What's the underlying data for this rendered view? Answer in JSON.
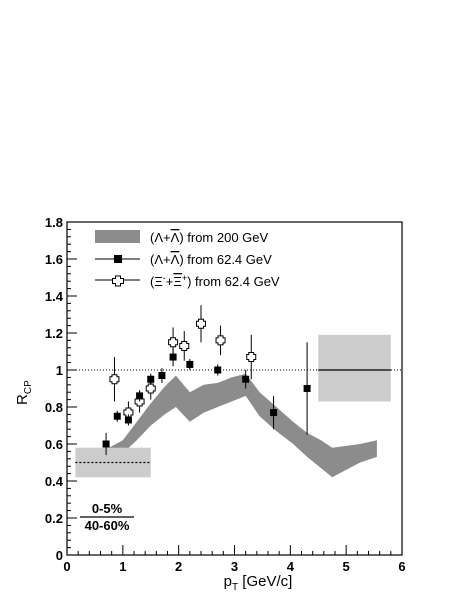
{
  "chart_data": {
    "type": "scatter",
    "xlabel": "p_T [GeV/c]",
    "xlabel_main": "p",
    "xlabel_sub": "T",
    "xlabel_unit": " [GeV/c]",
    "ylabel": "R_CP",
    "ylabel_main": "R",
    "ylabel_sub": "CP",
    "xlim": [
      0,
      6
    ],
    "ylim": [
      0,
      1.8
    ],
    "x_ticks": [
      0,
      1,
      2,
      3,
      4,
      5,
      6
    ],
    "x_tick_labels": [
      "0",
      "1",
      "2",
      "3",
      "4",
      "5",
      "6"
    ],
    "y_ticks": [
      0,
      0.2,
      0.4,
      0.6,
      0.8,
      1,
      1.2,
      1.4,
      1.6,
      1.8
    ],
    "y_tick_labels": [
      "0",
      "0.2",
      "0.4",
      "0.6",
      "0.8",
      "1",
      "1.2",
      "1.4",
      "1.6",
      "1.8"
    ],
    "grid": false,
    "legend_position": "top-right",
    "reference_line_y": 1.0,
    "legend": [
      {
        "key": "band",
        "label_parts": [
          "(",
          "Λ",
          "+",
          "Λ",
          ") from 200 GeV"
        ],
        "marker": "band"
      },
      {
        "key": "lambda62",
        "label_parts": [
          "(",
          "Λ",
          "+",
          "Λ",
          ") from 62.4 GeV"
        ],
        "marker": "filled-square"
      },
      {
        "key": "xi62",
        "label_parts": [
          "(",
          "Ξ",
          "+",
          "Ξ",
          ") from 62.4 GeV"
        ],
        "sup_minus": "-",
        "sup_plus": "+",
        "marker": "open-cross"
      }
    ],
    "series": [
      {
        "name": "(Λ+Λ̄) from 200 GeV",
        "type": "band",
        "color": "#8c8c8c",
        "x": [
          0.55,
          0.75,
          1.0,
          1.25,
          1.5,
          1.75,
          1.95,
          2.2,
          2.45,
          2.7,
          2.95,
          3.2,
          3.45,
          3.75,
          4.05,
          4.3,
          4.55,
          4.75,
          5.25,
          5.55
        ],
        "upper": [
          0.57,
          0.58,
          0.62,
          0.72,
          0.82,
          0.91,
          0.97,
          0.88,
          0.92,
          0.93,
          0.96,
          0.98,
          0.88,
          0.8,
          0.72,
          0.66,
          0.62,
          0.58,
          0.6,
          0.62
        ],
        "lower": [
          0.43,
          0.5,
          0.55,
          0.62,
          0.7,
          0.76,
          0.8,
          0.72,
          0.77,
          0.8,
          0.83,
          0.86,
          0.75,
          0.67,
          0.6,
          0.53,
          0.47,
          0.42,
          0.5,
          0.53
        ]
      },
      {
        "name": "(Λ+Λ̄) from 62.4 GeV",
        "marker": "filled-square",
        "color": "#000000",
        "x": [
          0.7,
          0.9,
          1.1,
          1.3,
          1.5,
          1.7,
          1.9,
          2.2,
          2.7,
          3.2,
          3.7,
          4.3
        ],
        "y": [
          0.6,
          0.75,
          0.73,
          0.86,
          0.95,
          0.97,
          1.07,
          1.03,
          1.0,
          0.95,
          0.77,
          0.9
        ],
        "err": [
          0.06,
          0.03,
          0.03,
          0.03,
          0.03,
          0.04,
          0.05,
          0.03,
          0.03,
          0.05,
          0.09,
          0.25
        ],
        "sys_box": {
          "x0": 0.15,
          "x1": 1.5,
          "y0": 0.42,
          "y1": 0.58,
          "line_y": 0.5
        }
      },
      {
        "name": "(Ξ-+Ξ̄+) from 62.4 GeV",
        "marker": "open-cross",
        "color": "#000000",
        "x": [
          0.85,
          1.1,
          1.3,
          1.5,
          1.9,
          2.1,
          2.4,
          2.75,
          3.3
        ],
        "y": [
          0.95,
          0.77,
          0.83,
          0.9,
          1.15,
          1.13,
          1.25,
          1.16,
          1.07
        ],
        "err": [
          0.12,
          0.06,
          0.06,
          0.06,
          0.08,
          0.08,
          0.1,
          0.08,
          0.12
        ],
        "sys_box": {
          "x0": 4.5,
          "x1": 5.8,
          "y0": 0.83,
          "y1": 1.19,
          "line_y": 1.0
        }
      }
    ],
    "annotation": {
      "numerator": "0-5%",
      "denominator": "40-60%"
    }
  }
}
